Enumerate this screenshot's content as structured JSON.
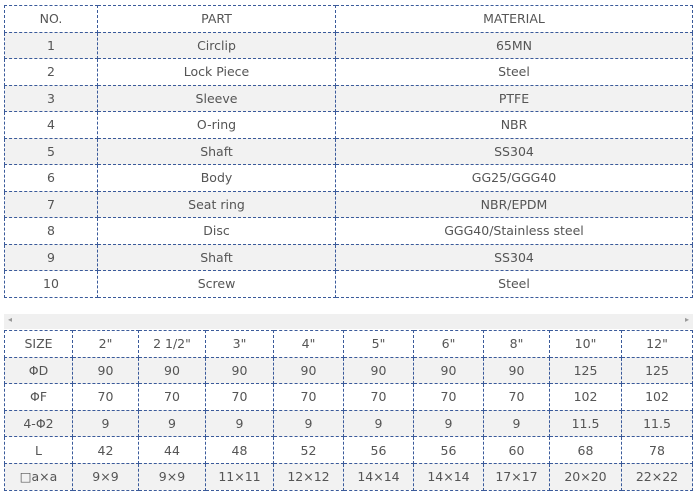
{
  "parts_table": {
    "headers": [
      "NO.",
      "PART",
      "MATERIAL"
    ],
    "rows": [
      [
        "1",
        "Circlip",
        "65MN"
      ],
      [
        "2",
        "Lock Piece",
        "Steel"
      ],
      [
        "3",
        "Sleeve",
        "PTFE"
      ],
      [
        "4",
        "O-ring",
        "NBR"
      ],
      [
        "5",
        "Shaft",
        "SS304"
      ],
      [
        "6",
        "Body",
        "GG25/GGG40"
      ],
      [
        "7",
        "Seat ring",
        "NBR/EPDM"
      ],
      [
        "8",
        "Disc",
        "GGG40/Stainless steel"
      ],
      [
        "9",
        "Shaft",
        "SS304"
      ],
      [
        "10",
        "Screw",
        "Steel"
      ]
    ]
  },
  "scrollbar": {
    "left_icon": "arrow-left-icon",
    "right_icon": "arrow-right-icon",
    "left": "◂",
    "right": "▸"
  },
  "size_table": {
    "rows": [
      [
        "SIZE",
        "2\"",
        "2 1/2\"",
        "3\"",
        "4\"",
        "5\"",
        "6\"",
        "8\"",
        "10\"",
        "12\""
      ],
      [
        "ΦD",
        "90",
        "90",
        "90",
        "90",
        "90",
        "90",
        "90",
        "125",
        "125"
      ],
      [
        "ΦF",
        "70",
        "70",
        "70",
        "70",
        "70",
        "70",
        "70",
        "102",
        "102"
      ],
      [
        "4-Φ2",
        "9",
        "9",
        "9",
        "9",
        "9",
        "9",
        "9",
        "11.5",
        "11.5"
      ],
      [
        "L",
        "42",
        "44",
        "48",
        "52",
        "56",
        "56",
        "60",
        "68",
        "78"
      ],
      [
        "□a×a",
        "9×9",
        "9×9",
        "11×11",
        "12×12",
        "14×14",
        "14×14",
        "17×17",
        "20×20",
        "22×22"
      ]
    ]
  }
}
